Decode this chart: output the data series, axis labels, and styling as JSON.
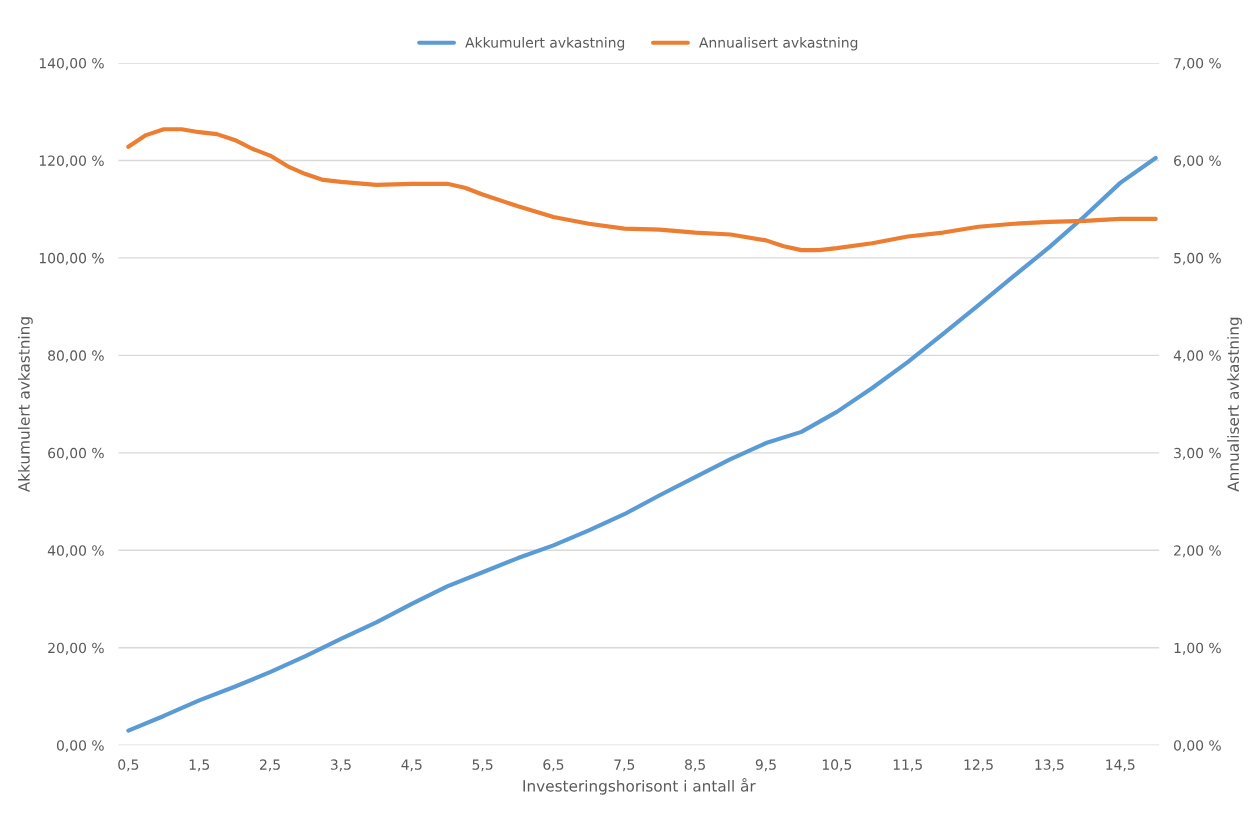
{
  "chart_data": {
    "type": "line",
    "xlabel": "Investeringshorisont i antall år",
    "ylabel": "Akkumulert avkastning",
    "y2label": "Annualisert avkastning",
    "xlim": [
      0.36,
      15.05
    ],
    "xticks": [
      {
        "value": 0.5,
        "label": "0,5"
      },
      {
        "value": 1.5,
        "label": "1,5"
      },
      {
        "value": 2.5,
        "label": "2,5"
      },
      {
        "value": 3.5,
        "label": "3,5"
      },
      {
        "value": 4.5,
        "label": "4,5"
      },
      {
        "value": 5.5,
        "label": "5,5"
      },
      {
        "value": 6.5,
        "label": "6,5"
      },
      {
        "value": 7.5,
        "label": "7,5"
      },
      {
        "value": 8.5,
        "label": "8,5"
      },
      {
        "value": 9.5,
        "label": "9,5"
      },
      {
        "value": 10.5,
        "label": "10,5"
      },
      {
        "value": 11.5,
        "label": "11,5"
      },
      {
        "value": 12.5,
        "label": "12,5"
      },
      {
        "value": 13.5,
        "label": "13,5"
      },
      {
        "value": 14.5,
        "label": "14,5"
      }
    ],
    "ylim": [
      0,
      140
    ],
    "yticks": [
      {
        "value": 0,
        "label": "0,00 %"
      },
      {
        "value": 20,
        "label": "20,00 %"
      },
      {
        "value": 40,
        "label": "40,00 %"
      },
      {
        "value": 60,
        "label": "60,00 %"
      },
      {
        "value": 80,
        "label": "80,00 %"
      },
      {
        "value": 100,
        "label": "100,00 %"
      },
      {
        "value": 120,
        "label": "120,00 %"
      },
      {
        "value": 140,
        "label": "140,00 %"
      }
    ],
    "y2lim": [
      0,
      7
    ],
    "y2ticks": [
      {
        "value": 0,
        "label": "0,00 %"
      },
      {
        "value": 1,
        "label": "1,00 %"
      },
      {
        "value": 2,
        "label": "2,00 %"
      },
      {
        "value": 3,
        "label": "3,00 %"
      },
      {
        "value": 4,
        "label": "4,00 %"
      },
      {
        "value": 5,
        "label": "5,00 %"
      },
      {
        "value": 6,
        "label": "6,00 %"
      },
      {
        "value": 7,
        "label": "7,00 %"
      }
    ],
    "grid": "y",
    "legend": "top",
    "marker": "none",
    "line_style": "solid",
    "series": [
      {
        "name": "Akkumulert avkastning",
        "color": "#5b9bd5",
        "x": [
          0.5,
          1.0,
          1.5,
          2.0,
          2.5,
          3.0,
          3.5,
          4.0,
          4.5,
          5.0,
          5.5,
          6.0,
          6.5,
          7.0,
          7.5,
          8.0,
          8.5,
          9.0,
          9.5,
          10.0,
          10.5,
          11.0,
          11.5,
          12.0,
          12.5,
          13.0,
          13.5,
          14.0,
          14.5,
          15.0
        ],
        "values": [
          3.0,
          6.0,
          9.2,
          12,
          15,
          18.3,
          21.8,
          25.2,
          29,
          32.6,
          35.5,
          38.4,
          41,
          44.1,
          47.4,
          51.3,
          55,
          58.7,
          62,
          64.3,
          68.4,
          73.3,
          78.6,
          84.4,
          90.3,
          96.3,
          102.2,
          108.6,
          115.4,
          120.5
        ]
      },
      {
        "name": "Annualisert avkastning",
        "color": "#ed7d31",
        "axis": "y2",
        "x": [
          0.5,
          0.75,
          1.0,
          1.25,
          1.5,
          1.75,
          2.0,
          2.25,
          2.5,
          2.75,
          3.0,
          3.25,
          3.5,
          4.0,
          4.5,
          5.0,
          5.25,
          5.5,
          6.0,
          6.5,
          7.0,
          7.5,
          8.0,
          8.5,
          9.0,
          9.5,
          9.75,
          10.0,
          10.25,
          10.5,
          11.0,
          11.5,
          12.0,
          12.5,
          13.0,
          13.5,
          14.0,
          14.5,
          15.0
        ],
        "values": [
          6.14,
          6.26,
          6.32,
          6.32,
          6.29,
          6.27,
          6.21,
          6.12,
          6.05,
          5.94,
          5.86,
          5.8,
          5.78,
          5.75,
          5.76,
          5.76,
          5.72,
          5.65,
          5.53,
          5.42,
          5.35,
          5.3,
          5.29,
          5.26,
          5.24,
          5.18,
          5.12,
          5.08,
          5.08,
          5.1,
          5.15,
          5.22,
          5.26,
          5.32,
          5.35,
          5.37,
          5.38,
          5.4,
          5.4
        ]
      }
    ]
  }
}
